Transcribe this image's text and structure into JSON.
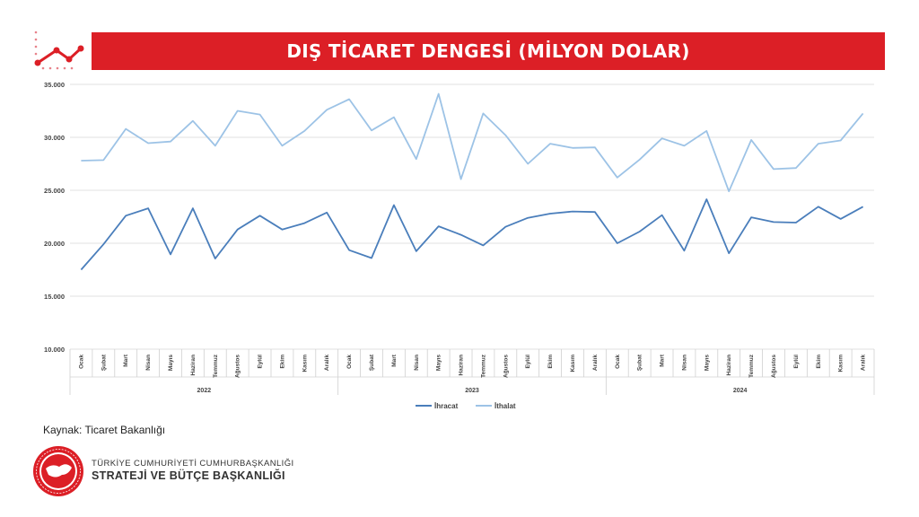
{
  "title": "DIŞ TİCARET DENGESİ (MİLYON DOLAR)",
  "source": "Kaynak: Ticaret Bakanlığı",
  "organization": {
    "line1": "TÜRKİYE CUMHURİYETİ CUMHURBAŞKANLIĞI",
    "line2": "STRATEJİ VE BÜTÇE BAŞKANLIĞI"
  },
  "colors": {
    "accent": "#dc1f26",
    "exports": "#4a7ebb",
    "imports": "#9dc3e6"
  },
  "chart_data": {
    "type": "line",
    "title": "DIŞ TİCARET DENGESİ (MİLYON DOLAR)",
    "xlabel": "",
    "ylabel": "",
    "ylim": [
      10000,
      35000
    ],
    "yticks": [
      {
        "value": 10000,
        "label": "10.000"
      },
      {
        "value": 15000,
        "label": "15.000"
      },
      {
        "value": 20000,
        "label": "20.000"
      },
      {
        "value": 25000,
        "label": "25.000"
      },
      {
        "value": 30000,
        "label": "30.000"
      },
      {
        "value": 35000,
        "label": "35.000"
      }
    ],
    "grid": true,
    "legend_position": "bottom",
    "years": [
      "2022",
      "2023",
      "2024"
    ],
    "months": [
      "Ocak",
      "Şubat",
      "Mart",
      "Nisan",
      "Mayıs",
      "Haziran",
      "Temmuz",
      "Ağustos",
      "Eylül",
      "Ekim",
      "Kasım",
      "Aralık"
    ],
    "series": [
      {
        "name": "İhracat",
        "color": "#4a7ebb",
        "values": [
          17500,
          19900,
          22600,
          23300,
          18950,
          23300,
          18550,
          21300,
          22600,
          21300,
          21900,
          22900,
          19350,
          18600,
          23600,
          19250,
          21600,
          20800,
          19800,
          21550,
          22400,
          22800,
          23000,
          22950,
          20000,
          21100,
          22650,
          19300,
          24150,
          19050,
          22450,
          22000,
          21950,
          23450,
          22300,
          23450
        ]
      },
      {
        "name": "İthalat",
        "color": "#9dc3e6",
        "values": [
          27800,
          27850,
          30800,
          29450,
          29600,
          31550,
          29200,
          32500,
          32150,
          29200,
          30600,
          32600,
          33600,
          30650,
          31900,
          27950,
          34100,
          26050,
          32250,
          30200,
          27500,
          29400,
          29000,
          29050,
          26200,
          27900,
          29900,
          29200,
          30600,
          24900,
          29750,
          27000,
          27100,
          29400,
          29700,
          32250
        ]
      }
    ]
  }
}
